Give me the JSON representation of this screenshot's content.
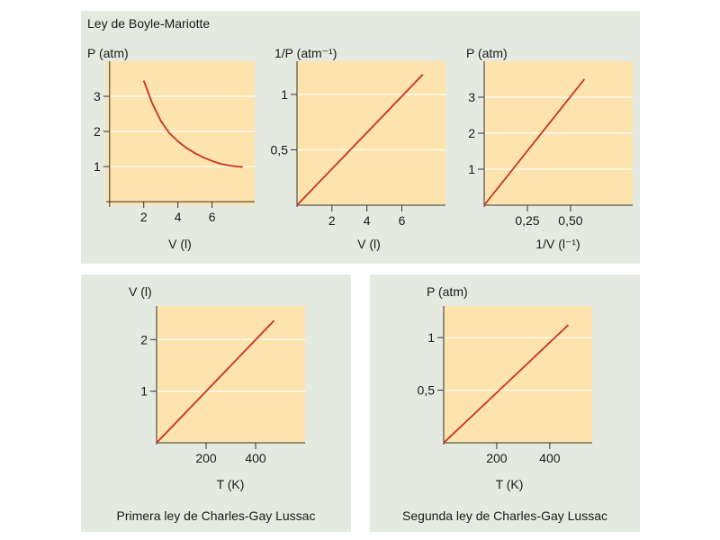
{
  "panels": {
    "boyle_title": "Ley de Boyle-Mariotte",
    "cgl1_title": "Primera ley de Charles-Gay Lussac",
    "cgl2_title": "Segunda ley de Charles-Gay Lussac"
  },
  "colors": {
    "plot_bg": "#fde3ad",
    "curve": "#c8321e",
    "panel_bg": "#e5eae0",
    "grid": "#ffffff"
  },
  "chart_data": [
    {
      "id": "c1",
      "type": "line",
      "title": "",
      "xlabel": "V (l)",
      "ylabel": "P (atm)",
      "xlim": [
        -0.2,
        8.5
      ],
      "ylim": [
        -0.1,
        4.0
      ],
      "xticks": [
        {
          "v": 2,
          "l": "2"
        },
        {
          "v": 4,
          "l": "4"
        },
        {
          "v": 6,
          "l": "6"
        }
      ],
      "yticks": [
        {
          "v": 1,
          "l": "1"
        },
        {
          "v": 2,
          "l": "2"
        },
        {
          "v": 3,
          "l": "3"
        }
      ],
      "grid_y": true,
      "series": [
        {
          "x": [
            2.0,
            2.5,
            3.0,
            3.5,
            4.0,
            4.5,
            5.0,
            5.5,
            6.0,
            6.5,
            7.0,
            7.5,
            7.8
          ],
          "y": [
            3.45,
            2.8,
            2.3,
            1.95,
            1.72,
            1.53,
            1.38,
            1.26,
            1.16,
            1.08,
            1.03,
            1.0,
            0.99
          ]
        }
      ]
    },
    {
      "id": "c2",
      "type": "line",
      "title": "",
      "xlabel": "V (l)",
      "ylabel": "1/P (atm⁻¹)",
      "xlim": [
        0,
        8.5
      ],
      "ylim": [
        0,
        1.3
      ],
      "xticks": [
        {
          "v": 2,
          "l": "2"
        },
        {
          "v": 4,
          "l": "4"
        },
        {
          "v": 6,
          "l": "6"
        }
      ],
      "yticks": [
        {
          "v": 0.5,
          "l": "0,5"
        },
        {
          "v": 1,
          "l": "1"
        }
      ],
      "grid_y": true,
      "series": [
        {
          "x": [
            0,
            7.2
          ],
          "y": [
            0,
            1.18
          ]
        }
      ]
    },
    {
      "id": "c3",
      "type": "line",
      "title": "",
      "xlabel": "1/V (l⁻¹)",
      "ylabel": "P (atm)",
      "xlim": [
        0,
        0.86
      ],
      "ylim": [
        0,
        4.0
      ],
      "xticks": [
        {
          "v": 0.25,
          "l": "0,25"
        },
        {
          "v": 0.5,
          "l": "0,50"
        }
      ],
      "yticks": [
        {
          "v": 1,
          "l": "1"
        },
        {
          "v": 2,
          "l": "2"
        },
        {
          "v": 3,
          "l": "3"
        }
      ],
      "grid_y": true,
      "series": [
        {
          "x": [
            0,
            0.58
          ],
          "y": [
            0,
            3.5
          ]
        }
      ]
    },
    {
      "id": "c4",
      "type": "line",
      "title": "",
      "xlabel": "T (K)",
      "ylabel": "V (l)",
      "xlim": [
        0,
        600
      ],
      "ylim": [
        0,
        2.65
      ],
      "xticks": [
        {
          "v": 200,
          "l": "200"
        },
        {
          "v": 400,
          "l": "400"
        }
      ],
      "yticks": [
        {
          "v": 1,
          "l": "1"
        },
        {
          "v": 2,
          "l": "2"
        }
      ],
      "grid_y": true,
      "series": [
        {
          "x": [
            0,
            475
          ],
          "y": [
            0,
            2.37
          ]
        }
      ]
    },
    {
      "id": "c5",
      "type": "line",
      "title": "",
      "xlabel": "T (K)",
      "ylabel": "P (atm)",
      "xlim": [
        0,
        560
      ],
      "ylim": [
        0,
        1.3
      ],
      "xticks": [
        {
          "v": 200,
          "l": "200"
        },
        {
          "v": 400,
          "l": "400"
        }
      ],
      "yticks": [
        {
          "v": 0.5,
          "l": "0,5"
        },
        {
          "v": 1,
          "l": "1"
        }
      ],
      "grid_y": true,
      "series": [
        {
          "x": [
            0,
            470
          ],
          "y": [
            0,
            1.12
          ]
        }
      ]
    }
  ]
}
